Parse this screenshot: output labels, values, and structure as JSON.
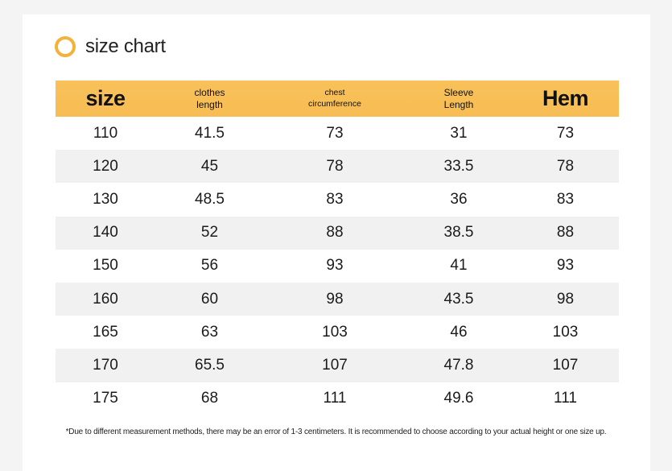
{
  "title": "size chart",
  "colors": {
    "accent": "#f4b23a",
    "header_bg": "#f9c15a",
    "stripe": "#f1f1f1"
  },
  "headers": [
    {
      "line1": "size",
      "line2": ""
    },
    {
      "line1": "clothes",
      "line2": "length"
    },
    {
      "line1": "chest",
      "line2": "circumference"
    },
    {
      "line1": "Sleeve",
      "line2": "Length"
    },
    {
      "line1": "Hem",
      "line2": ""
    }
  ],
  "rows": [
    [
      "110",
      "41.5",
      "73",
      "31",
      "73"
    ],
    [
      "120",
      "45",
      "78",
      "33.5",
      "78"
    ],
    [
      "130",
      "48.5",
      "83",
      "36",
      "83"
    ],
    [
      "140",
      "52",
      "88",
      "38.5",
      "88"
    ],
    [
      "150",
      "56",
      "93",
      "41",
      "93"
    ],
    [
      "160",
      "60",
      "98",
      "43.5",
      "98"
    ],
    [
      "165",
      "63",
      "103",
      "46",
      "103"
    ],
    [
      "170",
      "65.5",
      "107",
      "47.8",
      "107"
    ],
    [
      "175",
      "68",
      "111",
      "49.6",
      "111"
    ]
  ],
  "note": "*Due to different measurement methods, there may be an error of 1-3 centimeters. It is recommended to choose according to your actual height or one size up."
}
